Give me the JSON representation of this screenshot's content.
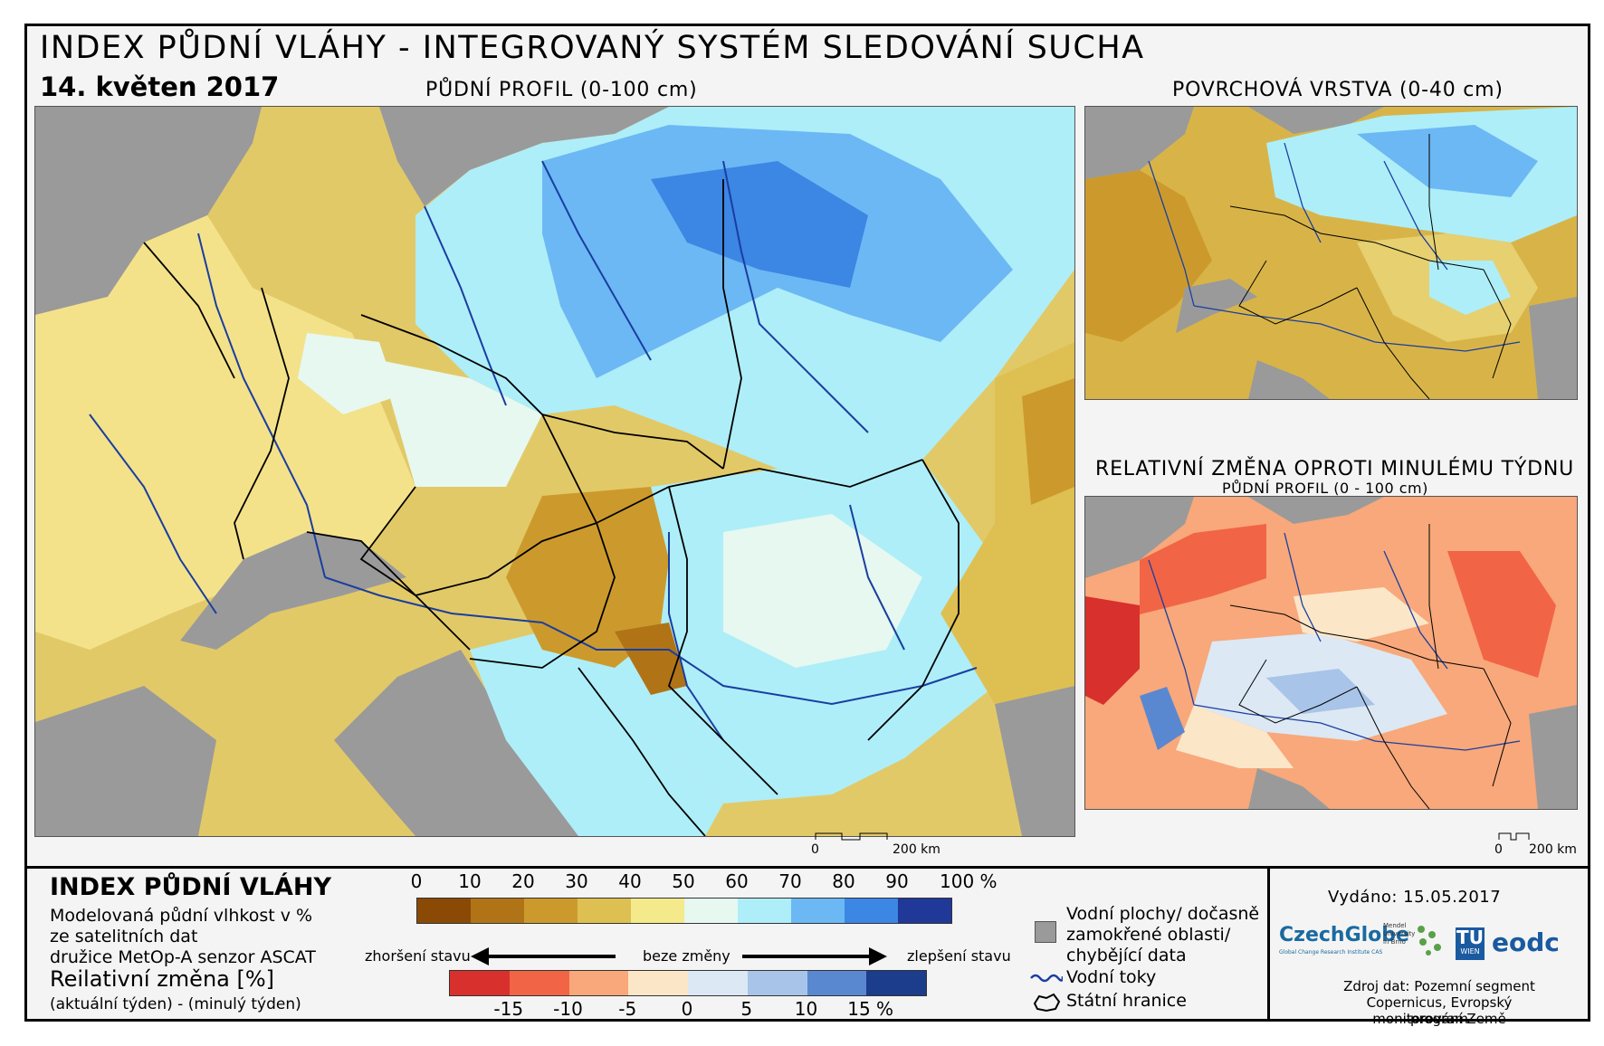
{
  "title": "INDEX PŮDNÍ VLÁHY - INTEGROVANÝ SYSTÉM SLEDOVÁNÍ SUCHA",
  "date": "14. květen 2017",
  "maps": {
    "main_label": "PŮDNÍ PROFIL (0-100 cm)",
    "surface_label": "POVRCHOVÁ VRSTVA (0-40 cm)",
    "change_label": "RELATIVNÍ ZMĚNA OPROTI MINULÉMU TÝDNU",
    "change_sublabel": "PŮDNÍ PROFIL (0 - 100 cm)"
  },
  "scalebar": {
    "zero": "0",
    "dist": "200 km"
  },
  "legend": {
    "title": "INDEX PŮDNÍ VLÁHY",
    "desc1": "Modelovaná půdní vlhkost v %",
    "desc2": "ze satelitních dat",
    "desc3": "družice MetOp-A senzor ASCAT",
    "change_title": "Reilativní změna [%]",
    "change_desc": "(aktuální týden) - (minulý týden)",
    "index_ticks": [
      "0",
      "10",
      "20",
      "30",
      "40",
      "50",
      "60",
      "70",
      "80",
      "90",
      "100 %"
    ],
    "index_colors": [
      "#8a4a05",
      "#b07416",
      "#cc9a2c",
      "#dec052",
      "#f4ea8c",
      "#e6f8f0",
      "#aeeef8",
      "#6cb8f4",
      "#3c86e4",
      "#203898"
    ],
    "worse": "zhoršení stavu",
    "nochange": "beze změny",
    "better": "zlepšení stavu",
    "change_ticks": [
      "-15",
      "-10",
      "-5",
      "0",
      "5",
      "10",
      "15 %"
    ],
    "change_colors": [
      "#d8302c",
      "#f26446",
      "#f8a87a",
      "#fce6c8",
      "#dce8f4",
      "#a8c4e8",
      "#5a88d0",
      "#1c3c8c"
    ],
    "water": "Vodní plochy/ dočasně",
    "water2": "zamokřené oblasti/",
    "water3": "chybějící data",
    "rivers": "Vodní toky",
    "borders": "Státní hranice",
    "water_color": "#9a9a9a",
    "river_color": "#1a3ea0"
  },
  "issued": "Vydáno: 15.05.2017",
  "logos": {
    "czechglobe": "CzechGlobe",
    "czechglobe_sub": "Global Change Research Institute CAS",
    "mendel": "Mendel University in Brno",
    "tu": "TU",
    "tu_sub": "WIEN",
    "eodc": "eodc"
  },
  "source1": "Zdroj dat: Pozemní segment",
  "source2": "Copernicus, Evropský program",
  "source3": "monitorování Země"
}
